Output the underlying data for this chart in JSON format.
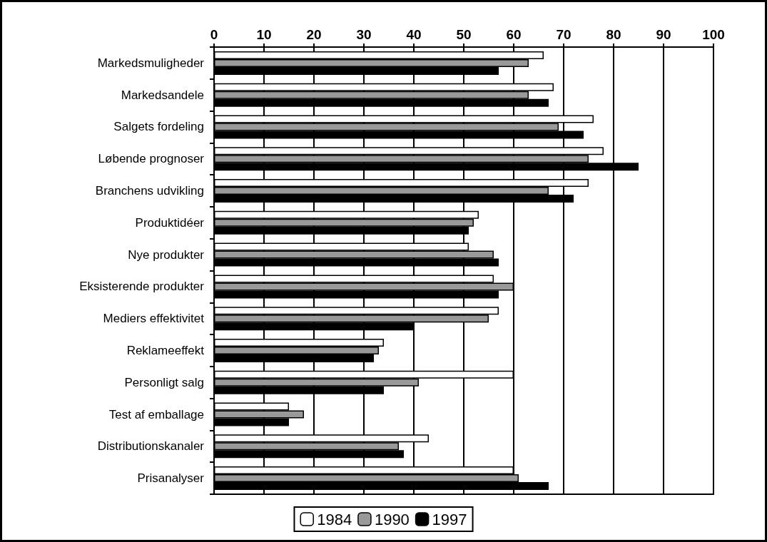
{
  "chart_data": {
    "type": "bar",
    "orientation": "horizontal",
    "categories": [
      "Markedsmuligheder",
      "Markedsandele",
      "Salgets fordeling",
      "Løbende prognoser",
      "Branchens udvikling",
      "Produktidéer",
      "Nye produkter",
      "Eksisterende produkter",
      "Mediers effektivitet",
      "Reklameeffekt",
      "Personligt salg",
      "Test af emballage",
      "Distributionskanaler",
      "Prisanalyser"
    ],
    "series": [
      {
        "name": "1984",
        "color": "#ffffff",
        "values": [
          66,
          68,
          76,
          78,
          75,
          53,
          51,
          56,
          57,
          34,
          60,
          15,
          43,
          60
        ]
      },
      {
        "name": "1990",
        "color": "#999999",
        "values": [
          63,
          63,
          69,
          75,
          67,
          52,
          56,
          60,
          55,
          33,
          41,
          18,
          37,
          61
        ]
      },
      {
        "name": "1997",
        "color": "#000000",
        "values": [
          57,
          67,
          74,
          85,
          72,
          51,
          57,
          57,
          40,
          32,
          34,
          15,
          38,
          67
        ]
      }
    ],
    "xlim": [
      0,
      100
    ],
    "xticks": [
      0,
      10,
      20,
      30,
      40,
      50,
      60,
      70,
      80,
      90,
      100
    ],
    "grid": "x",
    "legend": "bottom"
  }
}
